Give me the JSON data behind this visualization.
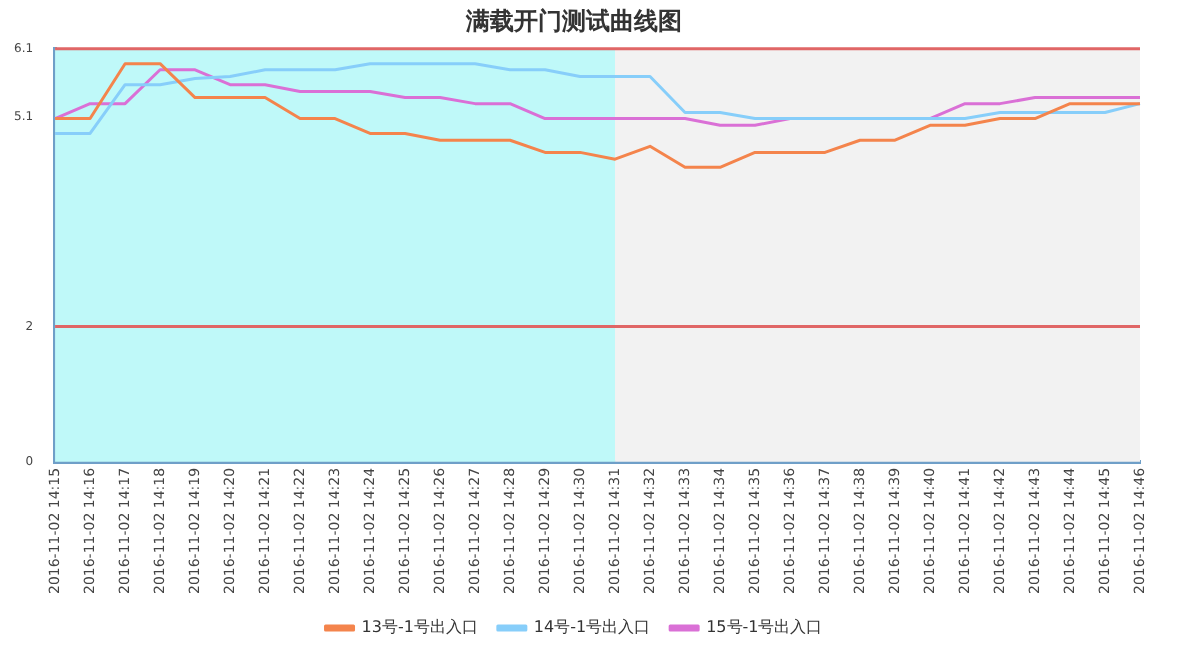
{
  "chart_data": {
    "type": "line",
    "title": "满载开门测试曲线图",
    "categories": [
      "2016-11-02 14:15",
      "2016-11-02 14:16",
      "2016-11-02 14:17",
      "2016-11-02 14:18",
      "2016-11-02 14:19",
      "2016-11-02 14:20",
      "2016-11-02 14:21",
      "2016-11-02 14:22",
      "2016-11-02 14:23",
      "2016-11-02 14:24",
      "2016-11-02 14:25",
      "2016-11-02 14:26",
      "2016-11-02 14:27",
      "2016-11-02 14:28",
      "2016-11-02 14:29",
      "2016-11-02 14:30",
      "2016-11-02 14:31",
      "2016-11-02 14:32",
      "2016-11-02 14:33",
      "2016-11-02 14:34",
      "2016-11-02 14:35",
      "2016-11-02 14:36",
      "2016-11-02 14:37",
      "2016-11-02 14:38",
      "2016-11-02 14:39",
      "2016-11-02 14:40",
      "2016-11-02 14:41",
      "2016-11-02 14:42",
      "2016-11-02 14:43",
      "2016-11-02 14:44",
      "2016-11-02 14:45",
      "2016-11-02 14:46"
    ],
    "series": [
      {
        "name": "13号-1号出入口",
        "color": "#f4844c",
        "values": [
          5.07,
          5.07,
          5.88,
          5.88,
          5.38,
          5.38,
          5.38,
          5.07,
          5.07,
          4.85,
          4.85,
          4.75,
          4.75,
          4.75,
          4.57,
          4.57,
          4.47,
          4.66,
          4.35,
          4.35,
          4.57,
          4.57,
          4.57,
          4.75,
          4.75,
          4.97,
          4.97,
          5.07,
          5.07,
          5.29,
          5.29,
          5.29
        ]
      },
      {
        "name": "14号-1号出入口",
        "color": "#87cefa",
        "values": [
          4.85,
          4.85,
          5.57,
          5.57,
          5.66,
          5.69,
          5.79,
          5.79,
          5.79,
          5.88,
          5.88,
          5.88,
          5.88,
          5.79,
          5.79,
          5.69,
          5.69,
          5.69,
          5.16,
          5.16,
          5.07,
          5.07,
          5.07,
          5.07,
          5.07,
          5.07,
          5.07,
          5.16,
          5.16,
          5.16,
          5.16,
          5.29
        ]
      },
      {
        "name": "15号-1号出入口",
        "color": "#da70d6",
        "values": [
          5.07,
          5.29,
          5.29,
          5.79,
          5.79,
          5.57,
          5.57,
          5.47,
          5.47,
          5.47,
          5.38,
          5.38,
          5.29,
          5.29,
          5.07,
          5.07,
          5.07,
          5.07,
          5.07,
          4.97,
          4.97,
          5.07,
          5.07,
          5.07,
          5.07,
          5.07,
          5.29,
          5.29,
          5.38,
          5.38,
          5.38,
          5.38
        ]
      }
    ],
    "ylim": [
      0,
      6.1
    ],
    "yticks": [
      0,
      2.0,
      5.1,
      6.1
    ],
    "ref_lines": [
      {
        "axis": "y",
        "value": 6.1,
        "color": "#e06666"
      },
      {
        "axis": "y",
        "value": 2.0,
        "color": "#e06666"
      }
    ],
    "bands": [
      {
        "axis": "x",
        "from": "2016-11-02 14:15",
        "to": "2016-11-02 14:31",
        "color": "#bff9f9"
      },
      {
        "axis": "x",
        "from": "2016-11-02 14:31",
        "to": "2016-11-02 14:46",
        "color": "#f2f2f2"
      }
    ],
    "legend": "bottom",
    "marker": "none",
    "line_style": "solid",
    "grid": false
  }
}
